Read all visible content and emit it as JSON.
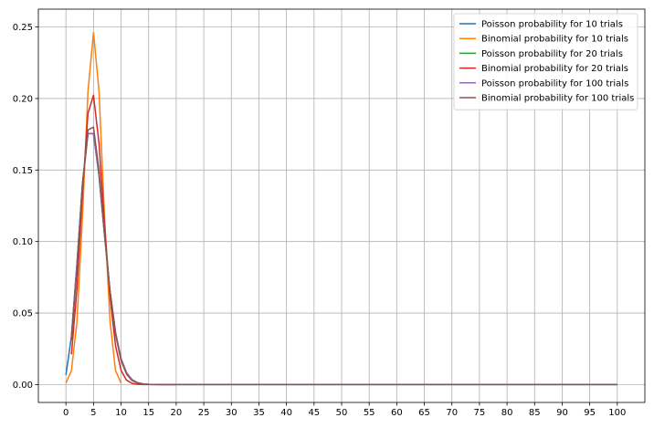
{
  "chart_data": {
    "type": "line",
    "title": "",
    "xlabel": "",
    "ylabel": "",
    "xlim": [
      -5,
      105
    ],
    "ylim": [
      -0.0125,
      0.2625
    ],
    "xticks": [
      0,
      5,
      10,
      15,
      20,
      25,
      30,
      35,
      40,
      45,
      50,
      55,
      60,
      65,
      70,
      75,
      80,
      85,
      90,
      95,
      100
    ],
    "xtick_labels": [
      "0",
      "5",
      "10",
      "15",
      "20",
      "25",
      "30",
      "35",
      "40",
      "45",
      "50",
      "55",
      "60",
      "65",
      "70",
      "75",
      "80",
      "85",
      "90",
      "95",
      "100"
    ],
    "yticks": [
      0,
      0.05,
      0.1,
      0.15,
      0.2,
      0.25
    ],
    "ytick_labels": [
      "0.00",
      "0.05",
      "0.10",
      "0.15",
      "0.20",
      "0.25"
    ],
    "grid": true,
    "legend_position": "top-right",
    "series": [
      {
        "name": "Poisson probability for 10 trials",
        "color": "#1f77b4",
        "x": [
          0,
          1,
          2,
          3,
          4,
          5,
          6,
          7,
          8,
          9,
          10,
          11,
          12,
          13,
          14,
          15,
          16,
          17,
          18,
          19,
          20,
          25,
          30,
          35,
          40,
          45,
          50,
          55,
          60,
          65,
          70,
          75,
          80,
          85,
          90,
          95,
          100
        ],
        "y": [
          0.0067,
          0.0337,
          0.0842,
          0.1404,
          0.1755,
          0.1755,
          0.1462,
          0.1044,
          0.0653,
          0.0363,
          0.0181,
          0.0082,
          0.0034,
          0.0013,
          0.0005,
          0.0002,
          0.0001,
          0,
          0,
          0,
          0,
          0,
          0,
          0,
          0,
          0,
          0,
          0,
          0,
          0,
          0,
          0,
          0,
          0,
          0,
          0,
          0
        ]
      },
      {
        "name": "Binomial probability for 10 trials",
        "color": "#ff7f0e",
        "x": [
          0,
          1,
          2,
          3,
          4,
          5,
          6,
          7,
          8,
          9,
          10
        ],
        "y": [
          0.001,
          0.0098,
          0.0439,
          0.1172,
          0.2051,
          0.2461,
          0.2051,
          0.1172,
          0.0439,
          0.0098,
          0.001
        ]
      },
      {
        "name": "Poisson probability for 20 trials",
        "color": "#2ca02c",
        "x": [
          1,
          2,
          3,
          4,
          5,
          6,
          7,
          8,
          9,
          10,
          11,
          12,
          13,
          14,
          15,
          16,
          17,
          18,
          19,
          20
        ],
        "y": [
          0.0337,
          0.0842,
          0.1404,
          0.1755,
          0.1755,
          0.1462,
          0.1044,
          0.0653,
          0.0363,
          0.0181,
          0.0082,
          0.0034,
          0.0013,
          0.0005,
          0.0002,
          0.0001,
          0,
          0,
          0,
          0
        ]
      },
      {
        "name": "Binomial probability for 20 trials",
        "color": "#d62728",
        "x": [
          1,
          2,
          3,
          4,
          5,
          6,
          7,
          8,
          9,
          10,
          11,
          12,
          13,
          14,
          15,
          16,
          17,
          18,
          19,
          20
        ],
        "y": [
          0.0211,
          0.0669,
          0.1339,
          0.1897,
          0.2023,
          0.1686,
          0.1124,
          0.0609,
          0.0271,
          0.0099,
          0.003,
          0.0008,
          0.0002,
          0,
          0,
          0,
          0,
          0,
          0,
          0
        ]
      },
      {
        "name": "Poisson probability for 100 trials",
        "color": "#9467bd",
        "x": [
          1,
          2,
          3,
          4,
          5,
          6,
          7,
          8,
          9,
          10,
          11,
          12,
          13,
          14,
          15,
          16,
          17,
          18,
          19,
          20,
          25,
          30,
          35,
          40,
          45,
          50,
          55,
          60,
          65,
          70,
          75,
          80,
          85,
          90,
          95,
          100
        ],
        "y": [
          0.0337,
          0.0842,
          0.1404,
          0.1755,
          0.1755,
          0.1462,
          0.1044,
          0.0653,
          0.0363,
          0.0181,
          0.0082,
          0.0034,
          0.0013,
          0.0005,
          0.0002,
          0.0001,
          0,
          0,
          0,
          0,
          0,
          0,
          0,
          0,
          0,
          0,
          0,
          0,
          0,
          0,
          0,
          0,
          0,
          0,
          0,
          0
        ]
      },
      {
        "name": "Binomial probability for 100 trials",
        "color": "#8c564b",
        "x": [
          1,
          2,
          3,
          4,
          5,
          6,
          7,
          8,
          9,
          10,
          11,
          12,
          13,
          14,
          15,
          16,
          17,
          18,
          19,
          20,
          25,
          30,
          35,
          40,
          45,
          50,
          55,
          60,
          65,
          70,
          75,
          80,
          85,
          90,
          95,
          100
        ],
        "y": [
          0.0312,
          0.0812,
          0.1396,
          0.1781,
          0.18,
          0.15,
          0.106,
          0.0649,
          0.0349,
          0.0167,
          0.0072,
          0.0028,
          0.001,
          0.0003,
          0.0001,
          0,
          0,
          0,
          0,
          0,
          0,
          0,
          0,
          0,
          0,
          0,
          0,
          0,
          0,
          0,
          0,
          0,
          0,
          0,
          0,
          0
        ]
      }
    ]
  }
}
